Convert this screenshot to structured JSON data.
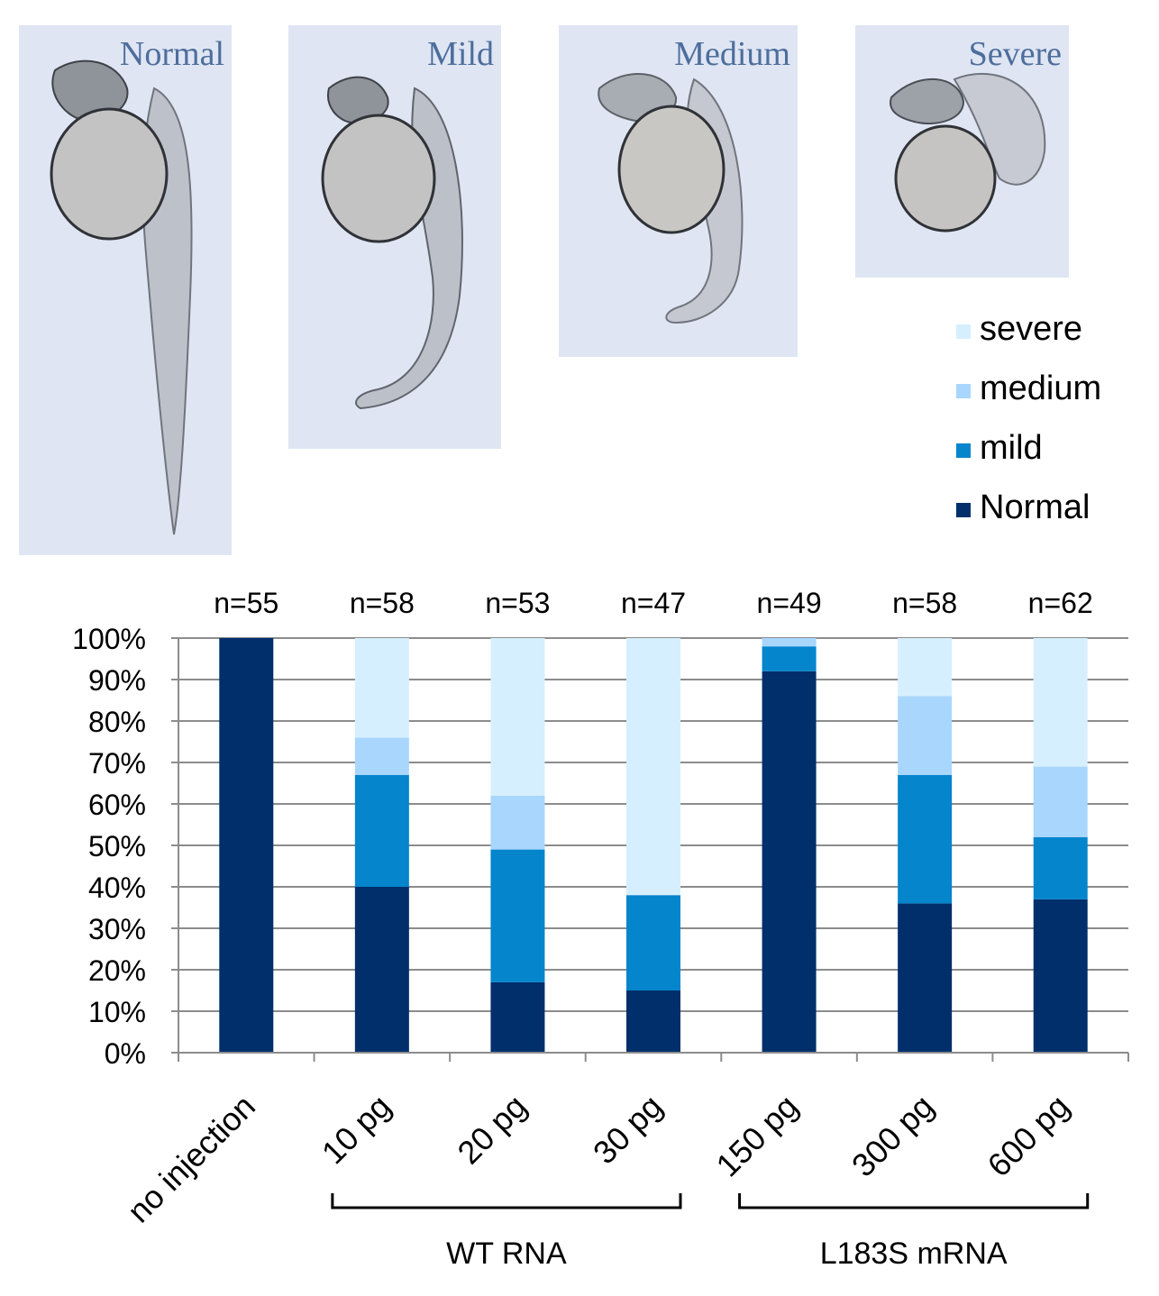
{
  "panels": [
    {
      "key": "normal",
      "label": "Normal"
    },
    {
      "key": "mild",
      "label": "Mild"
    },
    {
      "key": "medium",
      "label": "Medium"
    },
    {
      "key": "severe",
      "label": "Severe"
    }
  ],
  "legend": [
    {
      "label": "severe",
      "color": "#d6efff"
    },
    {
      "label": "medium",
      "color": "#a9d6fd"
    },
    {
      "label": "mild",
      "color": "#0485cc"
    },
    {
      "label": "Normal",
      "color": "#002f6c"
    }
  ],
  "chart_data": {
    "type": "bar",
    "stacked": true,
    "categories": [
      "no injection",
      "10 pg",
      "20 pg",
      "30 pg",
      "150 pg",
      "300 pg",
      "600 pg"
    ],
    "n_labels": [
      "n=55",
      "n=58",
      "n=53",
      "n=47",
      "n=49",
      "n=58",
      "n=62"
    ],
    "series": [
      {
        "name": "Normal",
        "color": "#002f6c",
        "values": [
          100,
          40,
          17,
          15,
          92,
          36,
          37
        ]
      },
      {
        "name": "mild",
        "color": "#0485cc",
        "values": [
          0,
          27,
          32,
          23,
          6,
          31,
          15
        ]
      },
      {
        "name": "medium",
        "color": "#a9d6fd",
        "values": [
          0,
          9,
          13,
          0,
          2,
          19,
          17
        ]
      },
      {
        "name": "severe",
        "color": "#d6efff",
        "values": [
          0,
          24,
          38,
          62,
          0,
          14,
          31
        ]
      }
    ],
    "ylim": [
      0,
      100
    ],
    "yticks": [
      "0%",
      "10%",
      "20%",
      "30%",
      "40%",
      "50%",
      "60%",
      "70%",
      "80%",
      "90%",
      "100%"
    ],
    "grid": true,
    "legend_position": "top-right",
    "groups": [
      {
        "label": "WT RNA",
        "categories": [
          "10 pg",
          "20 pg",
          "30 pg"
        ]
      },
      {
        "label": "L183S mRNA",
        "categories": [
          "150 pg",
          "300 pg",
          "600 pg"
        ]
      }
    ]
  }
}
